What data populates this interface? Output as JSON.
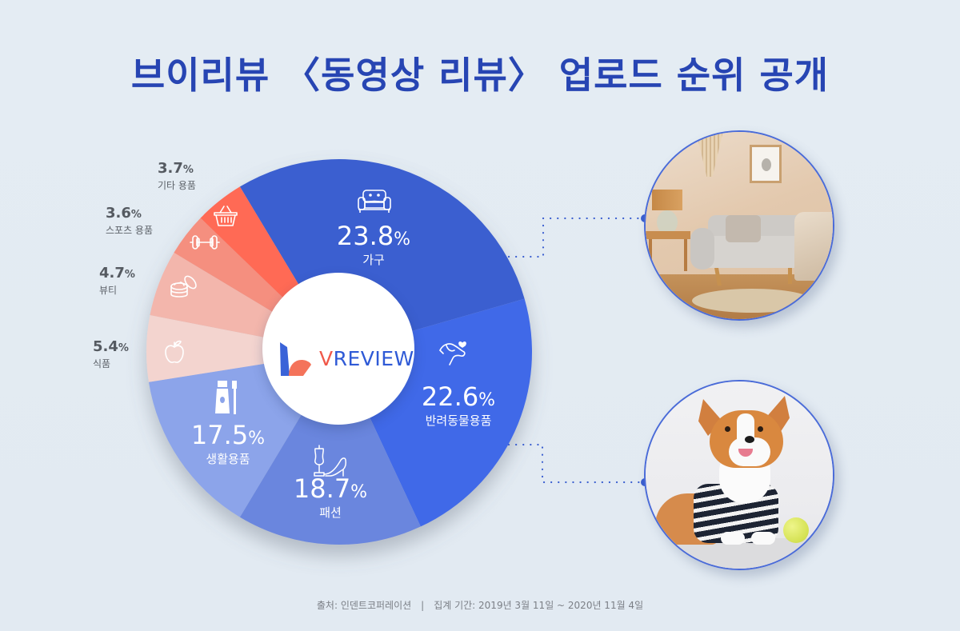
{
  "title": "브이리뷰 〈동영상 리뷰〉 업로드 순위 공개",
  "logo": {
    "v": "V",
    "rest": "REVIEW"
  },
  "chart_data": {
    "type": "pie",
    "donut": true,
    "title": "브이리뷰 〈동영상 리뷰〉 업로드 순위 공개",
    "categories": [
      "가구",
      "반려동물용품",
      "패션",
      "생활용품",
      "식품",
      "뷰티",
      "스포츠 용품",
      "기타 용품"
    ],
    "values": [
      23.8,
      22.6,
      18.7,
      17.5,
      5.4,
      4.7,
      3.6,
      3.7
    ],
    "unit": "%",
    "center": [
      424,
      440
    ],
    "radius": 241,
    "slices": [
      {
        "label": "가구",
        "value": 23.8,
        "num": "23.8",
        "pct": "%",
        "color": "#3a5fd0",
        "icon": "sofa-icon",
        "start_deg": -31,
        "end_deg": 74
      },
      {
        "label": "반려동물용품",
        "value": 22.6,
        "num": "22.6",
        "pct": "%",
        "color": "#4169e8",
        "icon": "dog-heart-icon",
        "start_deg": 74,
        "end_deg": 155
      },
      {
        "label": "패션",
        "value": 18.7,
        "num": "18.7",
        "pct": "%",
        "color": "#6a86de",
        "icon": "mannequin-heel-icon",
        "start_deg": 155,
        "end_deg": 211
      },
      {
        "label": "생활용품",
        "value": 17.5,
        "num": "17.5",
        "pct": "%",
        "color": "#8ca4ea",
        "icon": "toothpaste-brush-icon",
        "start_deg": 211,
        "end_deg": 261
      },
      {
        "label": "식품",
        "value": 5.4,
        "num": "5.4",
        "pct": "%",
        "color": "#f3d4cf",
        "icon": "apple-icon",
        "start_deg": 261,
        "end_deg": 281
      },
      {
        "label": "뷰티",
        "value": 4.7,
        "num": "4.7",
        "pct": "%",
        "color": "#f3b6ac",
        "icon": "cosmetic-jar-icon",
        "start_deg": 281,
        "end_deg": 301
      },
      {
        "label": "스포츠 용품",
        "value": 3.6,
        "num": "3.6",
        "pct": "%",
        "color": "#f58f7f",
        "icon": "dumbbell-icon",
        "start_deg": 301,
        "end_deg": 314
      },
      {
        "label": "기타 용품",
        "value": 3.7,
        "num": "3.7",
        "pct": "%",
        "color": "#ff6a55",
        "icon": "basket-icon",
        "start_deg": 314,
        "end_deg": 329
      }
    ]
  },
  "photos": [
    {
      "subject": "living room with sofa",
      "linked_slice": "가구"
    },
    {
      "subject": "corgi in striped shirt with tennis ball",
      "linked_slice": "반려동물용품"
    }
  ],
  "colors": {
    "title": "#2745b3",
    "connector": "#3b5fd0",
    "background": "#e3ebf2"
  },
  "footer": {
    "source": "출처: 인덴트코퍼레이션",
    "divider": "|",
    "period": "집계 기간: 2019년 3월 11일 ~ 2020년 11월 4일"
  }
}
